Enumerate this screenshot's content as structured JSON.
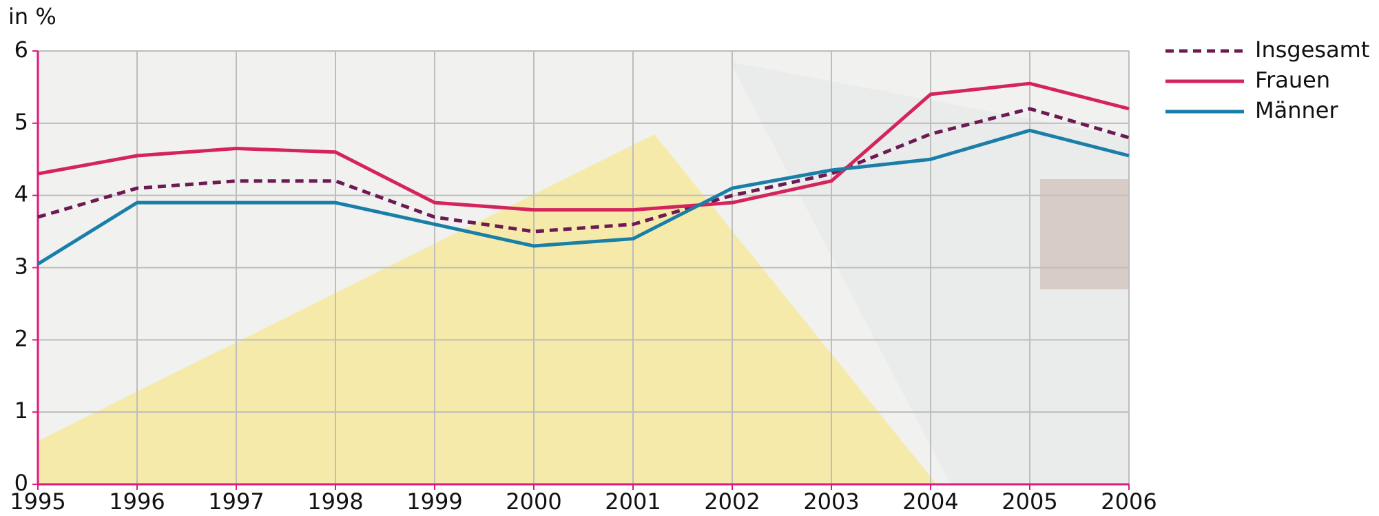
{
  "chart_data": {
    "type": "line",
    "ylabel": "in %",
    "x": [
      1995,
      1996,
      1997,
      1998,
      1999,
      2000,
      2001,
      2002,
      2003,
      2004,
      2005,
      2006
    ],
    "xlim": [
      1995,
      2006
    ],
    "xticks": [
      1995,
      1996,
      1997,
      1998,
      1999,
      2000,
      2001,
      2002,
      2003,
      2004,
      2005,
      2006
    ],
    "ylim": [
      0,
      6
    ],
    "yticks": [
      0,
      1,
      2,
      3,
      4,
      5,
      6
    ],
    "grid": true,
    "legend": "right",
    "series": [
      {
        "name": "Insgesamt",
        "color": "#6b1a52",
        "dashed": true,
        "values": [
          3.7,
          4.1,
          4.2,
          4.2,
          3.7,
          3.5,
          3.6,
          4.0,
          4.3,
          4.85,
          5.2,
          4.8
        ]
      },
      {
        "name": "Frauen",
        "color": "#d4245c",
        "values": [
          4.3,
          4.55,
          4.65,
          4.6,
          3.9,
          3.8,
          3.8,
          3.9,
          4.2,
          5.4,
          5.55,
          5.2
        ]
      },
      {
        "name": "Männer",
        "color": "#1a7fa8",
        "values": [
          3.05,
          3.9,
          3.9,
          3.9,
          3.6,
          3.3,
          3.4,
          4.1,
          4.35,
          4.5,
          4.9,
          4.55
        ]
      }
    ]
  }
}
